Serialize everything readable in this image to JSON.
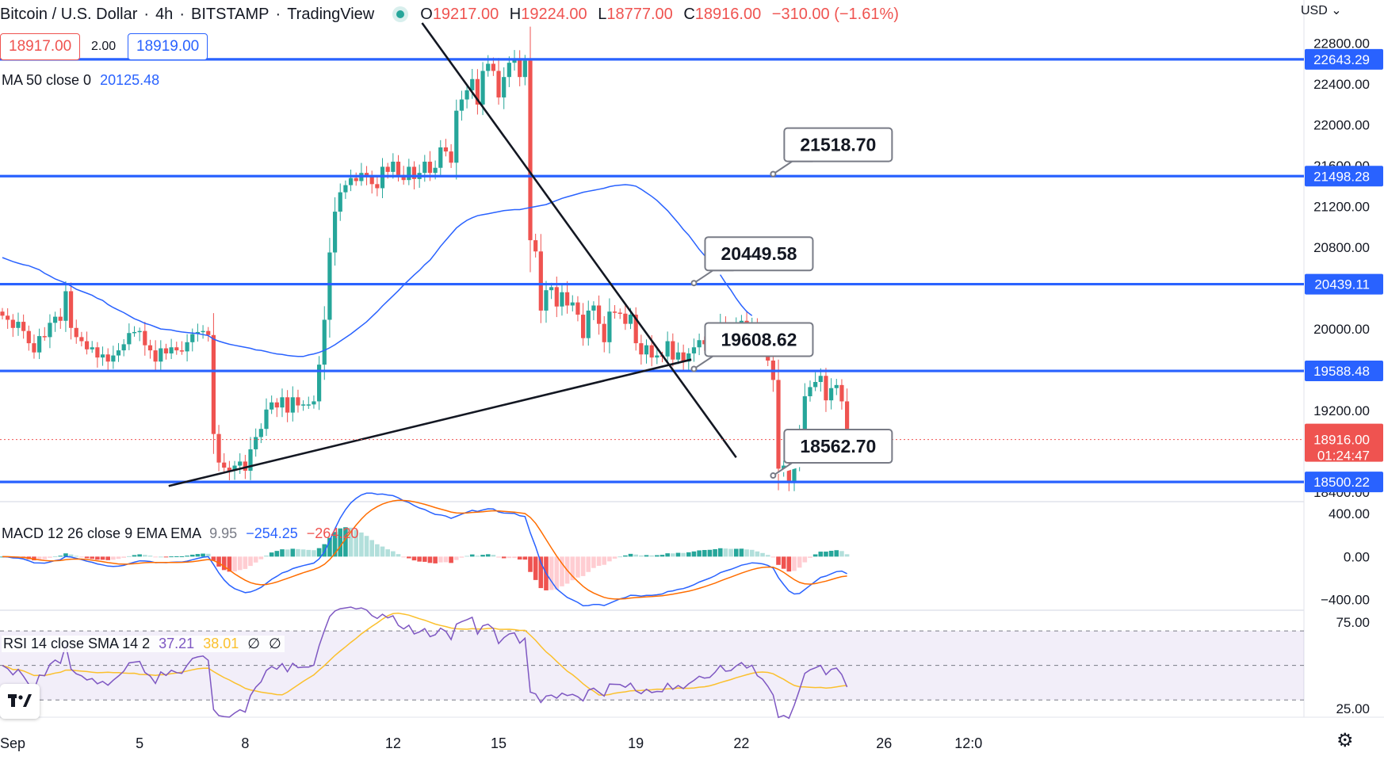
{
  "header": {
    "symbol": "Bitcoin / U.S. Dollar",
    "interval": "4h",
    "exchange": "BITSTAMP",
    "platform": "TradingView",
    "open_label": "O",
    "open": "19217.00",
    "high_label": "H",
    "high": "19224.00",
    "low_label": "L",
    "low": "18777.00",
    "close_label": "C",
    "close": "18916.00",
    "change": "−310.00 (−1.61%)"
  },
  "trade": {
    "sell": "18917.00",
    "spread": "2.00",
    "buy": "18919.00"
  },
  "ma": {
    "label": "MA 50 close 0",
    "value": "20125.48"
  },
  "macd": {
    "label": "MACD 12 26 close 9 EMA EMA",
    "hist": "9.95",
    "macd": "−254.25",
    "signal": "−264.20"
  },
  "rsi": {
    "label": "RSI 14 close SMA 14 2",
    "rsi": "37.21",
    "sma": "38.01",
    "x1": "∅",
    "x2": "∅"
  },
  "currency": "USD",
  "colors": {
    "up": "#26a69a",
    "down": "#ef5350",
    "level": "#2962ff",
    "ma": "#2962ff",
    "macd": "#2962ff",
    "signal": "#ff6d00",
    "rsi": "#7e57c2",
    "rsi_sma": "#fbc02d"
  },
  "icons": {
    "logo": "tradingview-logo-icon",
    "settings": "gear-icon",
    "currency_menu": "chevron-down-icon"
  },
  "chart_data": {
    "type": "candlestick",
    "symbol": "Bitcoin / U.S. Dollar",
    "price_axis": {
      "ticks": [
        22800,
        22400,
        22000,
        21600,
        21200,
        20800,
        20400,
        20000,
        19600,
        19200,
        18800,
        18400
      ],
      "labels": [
        "22800.00",
        "22400.00",
        "22000.00",
        "21600.00",
        "21200.00",
        "20800.00",
        "20400.00",
        "20000.00",
        "19600.00",
        "19200.00",
        "18800.00",
        "18400.00"
      ],
      "range": [
        18330,
        22930
      ]
    },
    "time_axis": {
      "labels": [
        "Sep",
        "5",
        "8",
        "12",
        "15",
        "19",
        "22",
        "26",
        "12:0"
      ],
      "label_bars": [
        0,
        26,
        46,
        74,
        94,
        120,
        140,
        167,
        183
      ]
    },
    "horizontal_levels": [
      {
        "price": 22643.29,
        "label": "22643.29"
      },
      {
        "price": 21498.28,
        "label": "21498.28"
      },
      {
        "price": 20439.11,
        "label": "20439.11"
      },
      {
        "price": 19588.48,
        "label": "19588.48"
      },
      {
        "price": 18500.22,
        "label": "18500.22"
      }
    ],
    "callouts": [
      {
        "text": "21518.70",
        "price": 21518.7,
        "bar": 146
      },
      {
        "text": "20449.58",
        "price": 20449.58,
        "bar": 131
      },
      {
        "text": "19608.62",
        "price": 19608.62,
        "bar": 131
      },
      {
        "text": "18562.70",
        "price": 18562.7,
        "bar": 146
      }
    ],
    "trendlines": [
      {
        "from": {
          "bar": 31.5,
          "price": 18460
        },
        "to": {
          "bar": 130.5,
          "price": 19700
        }
      },
      {
        "from": {
          "bar": 79.5,
          "price": 23000
        },
        "to": {
          "bar": 139,
          "price": 18740
        }
      }
    ],
    "last_price": {
      "value": "18916.00",
      "countdown": "01:24:47"
    },
    "closes": [
      20130,
      20090,
      20010,
      20070,
      19980,
      19860,
      19770,
      19930,
      19920,
      20060,
      20120,
      20080,
      20370,
      20010,
      19920,
      19880,
      19800,
      19820,
      19720,
      19750,
      19680,
      19740,
      19790,
      19850,
      19960,
      19970,
      19980,
      19840,
      19790,
      19680,
      19810,
      19760,
      19820,
      19790,
      19780,
      19870,
      19950,
      19970,
      19980,
      19940,
      18970,
      18690,
      18640,
      18610,
      18660,
      18700,
      18610,
      18820,
      18940,
      19020,
      19210,
      19280,
      19230,
      19330,
      19180,
      19330,
      19250,
      19260,
      19260,
      19290,
      19650,
      20090,
      20750,
      21150,
      21340,
      21410,
      21480,
      21450,
      21530,
      21500,
      21420,
      21380,
      21590,
      21540,
      21640,
      21510,
      21460,
      21590,
      21470,
      21530,
      21640,
      21530,
      21580,
      21780,
      21740,
      21630,
      22140,
      22250,
      22340,
      22450,
      22200,
      22530,
      22600,
      22530,
      22270,
      22470,
      22610,
      22650,
      22470,
      22630,
      20870,
      20760,
      20180,
      20380,
      20410,
      20220,
      20360,
      20230,
      20260,
      20140,
      19910,
      20180,
      20230,
      20050,
      19870,
      20170,
      20160,
      20150,
      20050,
      20140,
      19860,
      19750,
      19840,
      19720,
      19740,
      19730,
      19880,
      19700,
      19770,
      19680,
      19760,
      19820,
      19890,
      19850,
      19860,
      19940,
      20050,
      19950,
      19960,
      20030,
      20080,
      20000,
      20040,
      19880,
      19820,
      19690,
      19500,
      18630,
      18660,
      18500,
      18700,
      18980,
      19340,
      19430,
      19480,
      19540,
      19300,
      19420,
      19450,
      19290,
      18916
    ],
    "ma50": [
      20700,
      20680,
      20660,
      20645,
      20630,
      20620,
      20600,
      20580,
      20545,
      20520,
      20490,
      20470,
      20450,
      20420,
      20390,
      20370,
      20350,
      20330,
      20300,
      20280,
      20240,
      20210,
      20185,
      20160,
      20130,
      20100,
      20080,
      20055,
      20040,
      20020,
      20000,
      19995,
      19990,
      19978,
      19970,
      19965,
      19960,
      19955,
      19945,
      19935,
      19900,
      19880,
      19865,
      19850,
      19840,
      19830,
      19820,
      19810,
      19795,
      19790,
      19778,
      19765,
      19755,
      19750,
      19740,
      19735,
      19730,
      19730,
      19745,
      19755,
      19770,
      19790,
      19815,
      19845,
      19880,
      19915,
      19950,
      19990,
      20030,
      20070,
      20120,
      20170,
      20225,
      20275,
      20325,
      20375,
      20430,
      20480,
      20530,
      20575,
      20630,
      20675,
      20740,
      20810,
      20870,
      20930,
      20990,
      21030,
      21065,
      21090,
      21110,
      21120,
      21130,
      21140,
      21150,
      21160,
      21165,
      21170,
      21170,
      21180,
      21190,
      21200,
      21210,
      21220,
      21240,
      21260,
      21280,
      21295,
      21310,
      21325,
      21340,
      21350,
      21360,
      21370,
      21380,
      21395,
      21405,
      21410,
      21415,
      21410,
      21400,
      21370,
      21335,
      21300,
      21260,
      21210,
      21160,
      21100,
      21040,
      20975,
      20920,
      20850,
      20780,
      20720,
      20660,
      20590,
      20530,
      20450,
      20380,
      20300,
      20230,
      20170,
      20130
    ],
    "macd": {
      "range": [
        -500,
        520
      ],
      "ticks": [
        400,
        0,
        -400
      ],
      "tick_labels": [
        "400.00",
        "0.00",
        "−400.00"
      ]
    },
    "rsi": {
      "range": [
        20,
        82
      ],
      "band": [
        70,
        30
      ],
      "ticks": [
        75,
        25
      ],
      "tick_labels": [
        "75.00",
        "25.00"
      ]
    }
  }
}
